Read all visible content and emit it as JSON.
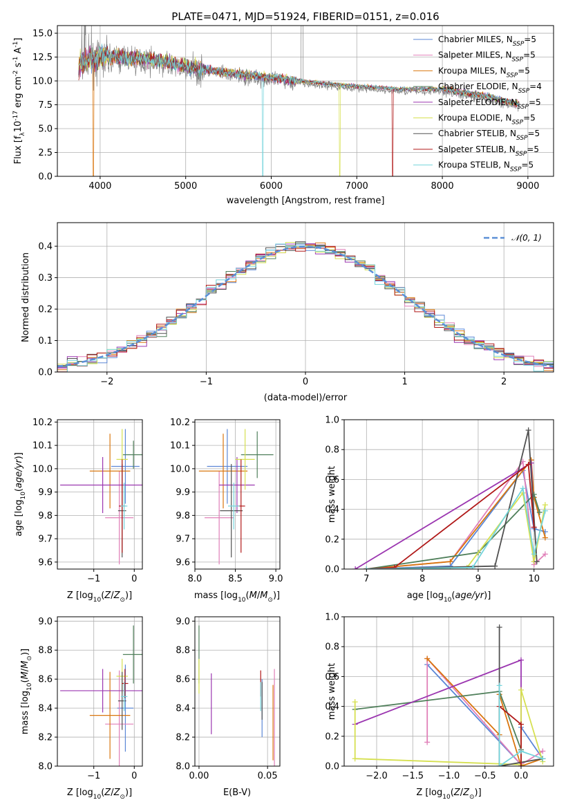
{
  "title": "PLATE=0471, MJD=51924, FIBERID=0151, z=0.016",
  "colors": {
    "Chabrier MILES": "#5b87d6",
    "Salpeter MILES": "#e07fb8",
    "Kroupa MILES": "#d9760e",
    "Chabrier ELODIE": "#4f7f5a",
    "Salpeter ELODIE": "#9b36b0",
    "Kroupa ELODIE": "#d6e050",
    "Chabrier STELIB": "#505050",
    "Salpeter STELIB": "#b01818",
    "Kroupa STELIB": "#74d4dc",
    "data": "#808080",
    "normal": "#5b8fd6"
  },
  "chart_data": [
    {
      "type": "line",
      "id": "spectrum",
      "title": "PLATE=0471, MJD=51924, FIBERID=0151, z=0.016",
      "xlabel": "wavelength [Angstrom, rest frame]",
      "ylabel_parts": [
        "Flux [f",
        "λ",
        "10",
        "-17",
        " erg cm",
        "-2",
        " s",
        "-1",
        " A",
        "-1",
        "]"
      ],
      "xlim": [
        3500,
        9300
      ],
      "ylim": [
        0,
        15.8
      ],
      "xticks": [
        4000,
        5000,
        6000,
        7000,
        8000,
        9000
      ],
      "yticks": [
        0.0,
        2.5,
        5.0,
        7.5,
        10.0,
        12.5,
        15.0
      ],
      "continuum": [
        [
          3750,
          11.5
        ],
        [
          4000,
          12.4
        ],
        [
          4300,
          12.2
        ],
        [
          4600,
          12.0
        ],
        [
          5000,
          11.3
        ],
        [
          5500,
          10.6
        ],
        [
          6000,
          10.1
        ],
        [
          6500,
          9.6
        ],
        [
          7000,
          9.2
        ],
        [
          7500,
          8.9
        ],
        [
          8000,
          8.9
        ],
        [
          8500,
          8.2
        ],
        [
          8900,
          7.3
        ]
      ],
      "legend": [
        {
          "name": "Chabrier MILES",
          "label": "Chabrier MILES, N",
          "sub": "SSP",
          "n": "=5"
        },
        {
          "name": "Salpeter MILES",
          "label": "Salpeter MILES, N",
          "sub": "SSP",
          "n": "=5"
        },
        {
          "name": "Kroupa MILES",
          "label": "Kroupa MILES, N",
          "sub": "SSP",
          "n": "=5"
        },
        {
          "name": "Chabrier ELODIE",
          "label": "Chabrier ELODIE, N",
          "sub": "SSP",
          "n": "=4"
        },
        {
          "name": "Salpeter ELODIE",
          "label": "Salpeter ELODIE, N",
          "sub": "SSP",
          "n": "=5"
        },
        {
          "name": "Kroupa ELODIE",
          "label": "Kroupa ELODIE, N",
          "sub": "SSP",
          "n": "=5"
        },
        {
          "name": "Chabrier STELIB",
          "label": "Chabrier STELIB, N",
          "sub": "SSP",
          "n": "=5"
        },
        {
          "name": "Salpeter STELIB",
          "label": "Salpeter STELIB, N",
          "sub": "SSP",
          "n": "=5"
        },
        {
          "name": "Kroupa STELIB",
          "label": "Kroupa STELIB, N",
          "sub": "SSP",
          "n": "=5"
        }
      ],
      "drops": [
        {
          "model": "Kroupa MILES",
          "x": 3920
        },
        {
          "model": "Salpeter STELIB",
          "x": 7420
        },
        {
          "model": "Kroupa ELODIE",
          "x": 6800
        },
        {
          "model": "Kroupa STELIB",
          "x": 5900
        }
      ]
    },
    {
      "type": "line",
      "id": "residuals",
      "xlabel": "(data-model)/error",
      "ylabel": "Normed distribution",
      "xlim": [
        -2.5,
        2.5
      ],
      "ylim": [
        0,
        0.475
      ],
      "xticks": [
        -2,
        -1,
        0,
        1,
        2
      ],
      "yticks": [
        0.0,
        0.1,
        0.2,
        0.3,
        0.4
      ],
      "legend": "𝒩(0, 1)"
    },
    {
      "type": "scatter",
      "id": "age-vs-Z",
      "xlabel": "Z [log10(Z/Z⊙)]",
      "ylabel": "age [log10(age/yr)]",
      "xlim": [
        -1.9,
        0.2
      ],
      "ylim": [
        9.57,
        10.21
      ],
      "xticks": [
        -1,
        0
      ],
      "yticks": [
        9.6,
        9.7,
        9.8,
        9.9,
        10.0,
        10.1,
        10.2
      ],
      "points": [
        {
          "model": "Chabrier MILES",
          "x": -0.22,
          "y": 10.01,
          "xerr": 0.35,
          "yerr": 0.16
        },
        {
          "model": "Salpeter MILES",
          "x": -0.37,
          "y": 9.79,
          "xerr": 0.35,
          "yerr": 0.2
        },
        {
          "model": "Kroupa MILES",
          "x": -0.6,
          "y": 9.99,
          "xerr": 0.5,
          "yerr": 0.16
        },
        {
          "model": "Chabrier ELODIE",
          "x": -0.02,
          "y": 10.06,
          "xerr": 0.26,
          "yerr": 0.06
        },
        {
          "model": "Salpeter ELODIE",
          "x": -0.78,
          "y": 9.93,
          "xerr": 1.05,
          "yerr": 0.12
        },
        {
          "model": "Kroupa ELODIE",
          "x": -0.3,
          "y": 10.04,
          "xerr": 0.14,
          "yerr": 0.13
        },
        {
          "model": "Chabrier STELIB",
          "x": -0.3,
          "y": 9.82,
          "xerr": 0.1,
          "yerr": 0.2
        },
        {
          "model": "Salpeter STELIB",
          "x": -0.3,
          "y": 9.84,
          "xerr": 0.08,
          "yerr": 0.2
        },
        {
          "model": "Kroupa STELIB",
          "x": -0.25,
          "y": 9.84,
          "xerr": 0.08,
          "yerr": 0.1
        }
      ]
    },
    {
      "type": "scatter",
      "id": "age-vs-mass",
      "xlabel": "mass [log10(M/M⊙)]",
      "ylabel": "",
      "xlim": [
        8.0,
        9.05
      ],
      "ylim": [
        9.57,
        10.21
      ],
      "xticks": [
        8.0,
        8.5,
        9.0
      ],
      "yticks": [
        9.6,
        9.7,
        9.8,
        9.9,
        10.0,
        10.1,
        10.2
      ],
      "points": [
        {
          "model": "Chabrier MILES",
          "x": 8.4,
          "y": 10.01,
          "xerr": 0.25,
          "yerr": 0.16
        },
        {
          "model": "Salpeter MILES",
          "x": 8.3,
          "y": 9.79,
          "xerr": 0.18,
          "yerr": 0.2
        },
        {
          "model": "Kroupa MILES",
          "x": 8.35,
          "y": 9.99,
          "xerr": 0.3,
          "yerr": 0.16
        },
        {
          "model": "Chabrier ELODIE",
          "x": 8.77,
          "y": 10.06,
          "xerr": 0.2,
          "yerr": 0.1
        },
        {
          "model": "Salpeter ELODIE",
          "x": 8.52,
          "y": 9.93,
          "xerr": 0.22,
          "yerr": 0.12
        },
        {
          "model": "Kroupa ELODIE",
          "x": 8.62,
          "y": 10.04,
          "xerr": 0.12,
          "yerr": 0.13
        },
        {
          "model": "Chabrier STELIB",
          "x": 8.45,
          "y": 9.82,
          "xerr": 0.14,
          "yerr": 0.2
        },
        {
          "model": "Salpeter STELIB",
          "x": 8.57,
          "y": 9.84,
          "xerr": 0.05,
          "yerr": 0.2
        },
        {
          "model": "Kroupa STELIB",
          "x": 8.48,
          "y": 9.84,
          "xerr": 0.07,
          "yerr": 0.1
        }
      ]
    },
    {
      "type": "line",
      "id": "weight-vs-age",
      "xlabel": "age [log10(age/yr)]",
      "ylabel": "mass weight",
      "xlim": [
        6.6,
        10.35
      ],
      "ylim": [
        0,
        1.0
      ],
      "xticks": [
        7,
        8,
        9,
        10
      ],
      "yticks": [
        0.0,
        0.2,
        0.4,
        0.6,
        0.8,
        1.0
      ],
      "series": [
        {
          "model": "Chabrier MILES",
          "points": [
            [
              7.0,
              0.0
            ],
            [
              8.5,
              0.02
            ],
            [
              9.8,
              0.66
            ],
            [
              10.0,
              0.27
            ],
            [
              10.2,
              0.25
            ]
          ]
        },
        {
          "model": "Salpeter MILES",
          "points": [
            [
              7.0,
              0.0
            ],
            [
              8.5,
              0.05
            ],
            [
              9.8,
              0.72
            ],
            [
              10.0,
              0.03
            ],
            [
              10.2,
              0.1
            ]
          ]
        },
        {
          "model": "Kroupa MILES",
          "points": [
            [
              7.0,
              0.0
            ],
            [
              8.5,
              0.05
            ],
            [
              9.95,
              0.73
            ],
            [
              10.0,
              0.48
            ],
            [
              10.2,
              0.21
            ]
          ]
        },
        {
          "model": "Chabrier ELODIE",
          "points": [
            [
              7.0,
              0.0
            ],
            [
              9.0,
              0.11
            ],
            [
              10.0,
              0.5
            ],
            [
              10.1,
              0.38
            ]
          ]
        },
        {
          "model": "Salpeter ELODIE",
          "points": [
            [
              6.8,
              0.0
            ],
            [
              9.95,
              0.71
            ],
            [
              10.0,
              0.28
            ]
          ]
        },
        {
          "model": "Kroupa ELODIE",
          "points": [
            [
              7.0,
              0.0
            ],
            [
              8.8,
              0.01
            ],
            [
              9.8,
              0.51
            ],
            [
              10.0,
              0.05
            ],
            [
              10.2,
              0.43
            ]
          ]
        },
        {
          "model": "Chabrier STELIB",
          "points": [
            [
              7.0,
              0.0
            ],
            [
              9.3,
              0.02
            ],
            [
              9.9,
              0.93
            ],
            [
              10.05,
              0.05
            ]
          ]
        },
        {
          "model": "Salpeter STELIB",
          "points": [
            [
              7.0,
              0.0
            ],
            [
              7.5,
              0.01
            ],
            [
              9.9,
              0.7
            ],
            [
              10.0,
              0.28
            ]
          ]
        },
        {
          "model": "Kroupa STELIB",
          "points": [
            [
              7.0,
              0.0
            ],
            [
              8.9,
              0.01
            ],
            [
              9.8,
              0.54
            ],
            [
              10.0,
              0.1
            ],
            [
              10.2,
              0.39
            ]
          ]
        }
      ]
    },
    {
      "type": "scatter",
      "id": "mass-vs-Z",
      "xlabel": "Z [log10(Z/Z⊙)]",
      "ylabel": "mass [log10(M/M⊙)]",
      "xlim": [
        -1.9,
        0.2
      ],
      "ylim": [
        8.0,
        9.03
      ],
      "xticks": [
        -1,
        0
      ],
      "yticks": [
        8.0,
        8.2,
        8.4,
        8.6,
        8.8,
        9.0
      ],
      "points": [
        {
          "model": "Chabrier MILES",
          "x": -0.22,
          "y": 8.4,
          "xerr": 0.2,
          "yerr": 0.3
        },
        {
          "model": "Salpeter MILES",
          "x": -0.37,
          "y": 8.29,
          "xerr": 0.35,
          "yerr": 0.37
        },
        {
          "model": "Kroupa MILES",
          "x": -0.6,
          "y": 8.35,
          "xerr": 0.5,
          "yerr": 0.3
        },
        {
          "model": "Chabrier ELODIE",
          "x": -0.02,
          "y": 8.77,
          "xerr": 0.26,
          "yerr": 0.2
        },
        {
          "model": "Salpeter ELODIE",
          "x": -0.78,
          "y": 8.52,
          "xerr": 1.05,
          "yerr": 0.15
        },
        {
          "model": "Kroupa ELODIE",
          "x": -0.3,
          "y": 8.62,
          "xerr": 0.14,
          "yerr": 0.12
        },
        {
          "model": "Chabrier STELIB",
          "x": -0.3,
          "y": 8.45,
          "xerr": 0.1,
          "yerr": 0.2
        },
        {
          "model": "Salpeter STELIB",
          "x": -0.23,
          "y": 8.57,
          "xerr": 0.08,
          "yerr": 0.1
        },
        {
          "model": "Kroupa STELIB",
          "x": -0.25,
          "y": 8.48,
          "xerr": 0.08,
          "yerr": 0.1
        }
      ]
    },
    {
      "type": "scatter",
      "id": "mass-vs-ebv",
      "xlabel": "E(B-V)",
      "ylabel": "",
      "xlim": [
        -0.003,
        0.059
      ],
      "ylim": [
        8.0,
        9.03
      ],
      "xticks": [
        0.0,
        0.05
      ],
      "yticks": [
        8.0,
        8.2,
        8.4,
        8.6,
        8.8,
        9.0
      ],
      "points": [
        {
          "model": "Chabrier MILES",
          "x": 0.046,
          "y": 8.4,
          "yerr": 0.2
        },
        {
          "model": "Salpeter MILES",
          "x": 0.055,
          "y": 8.3,
          "yerr": 0.37
        },
        {
          "model": "Kroupa MILES",
          "x": 0.054,
          "y": 8.3,
          "yerr": 0.26
        },
        {
          "model": "Chabrier ELODIE",
          "x": 0.0,
          "y": 8.77,
          "yerr": 0.2
        },
        {
          "model": "Salpeter ELODIE",
          "x": 0.009,
          "y": 8.43,
          "yerr": 0.21
        },
        {
          "model": "Kroupa ELODIE",
          "x": 0.0,
          "y": 8.62,
          "yerr": 0.12
        },
        {
          "model": "Chabrier STELIB",
          "x": 0.046,
          "y": 8.45,
          "yerr": 0.13
        },
        {
          "model": "Salpeter STELIB",
          "x": 0.045,
          "y": 8.57,
          "yerr": 0.09
        },
        {
          "model": "Kroupa STELIB",
          "x": 0.045,
          "y": 8.48,
          "yerr": 0.1
        }
      ]
    },
    {
      "type": "line",
      "id": "weight-vs-Z",
      "xlabel": "Z [log10(Z/Z⊙)]",
      "ylabel": "mass weight",
      "xlim": [
        -2.45,
        0.45
      ],
      "ylim": [
        0,
        1.0
      ],
      "xticks": [
        -2.0,
        -1.5,
        -1.0,
        -0.5,
        0.0
      ],
      "yticks": [
        0.0,
        0.2,
        0.4,
        0.6,
        0.8,
        1.0
      ],
      "series": [
        {
          "model": "Chabrier MILES",
          "points": [
            [
              -1.3,
              0.68
            ],
            [
              0.0,
              0.01
            ],
            [
              0.0,
              0.26
            ],
            [
              0.3,
              0.05
            ]
          ]
        },
        {
          "model": "Salpeter MILES",
          "points": [
            [
              -1.3,
              0.16
            ],
            [
              -1.3,
              0.72
            ],
            [
              0.0,
              0.01
            ],
            [
              0.3,
              0.1
            ]
          ]
        },
        {
          "model": "Kroupa MILES",
          "points": [
            [
              -1.3,
              0.72
            ],
            [
              -0.3,
              0.21
            ],
            [
              -0.3,
              0.48
            ],
            [
              0.0,
              0.0
            ],
            [
              0.3,
              0.05
            ]
          ]
        },
        {
          "model": "Chabrier ELODIE",
          "points": [
            [
              -2.3,
              0.38
            ],
            [
              -0.3,
              0.5
            ],
            [
              0.0,
              0.11
            ]
          ]
        },
        {
          "model": "Salpeter ELODIE",
          "points": [
            [
              -2.3,
              0.28
            ],
            [
              0.0,
              0.71
            ],
            [
              0.0,
              0.0
            ]
          ]
        },
        {
          "model": "Kroupa ELODIE",
          "points": [
            [
              -2.3,
              0.43
            ],
            [
              -2.3,
              0.05
            ],
            [
              0.0,
              0.01
            ],
            [
              0.0,
              0.51
            ],
            [
              0.3,
              0.03
            ]
          ]
        },
        {
          "model": "Chabrier STELIB",
          "points": [
            [
              -0.3,
              0.93
            ],
            [
              -0.3,
              0.0
            ],
            [
              0.3,
              0.05
            ]
          ]
        },
        {
          "model": "Salpeter STELIB",
          "points": [
            [
              -0.3,
              0.4
            ],
            [
              0.0,
              0.28
            ],
            [
              0.0,
              0.0
            ]
          ]
        },
        {
          "model": "Kroupa STELIB",
          "points": [
            [
              -0.3,
              0.54
            ],
            [
              -0.3,
              0.0
            ],
            [
              0.0,
              0.1
            ],
            [
              0.3,
              0.05
            ]
          ]
        }
      ]
    }
  ]
}
